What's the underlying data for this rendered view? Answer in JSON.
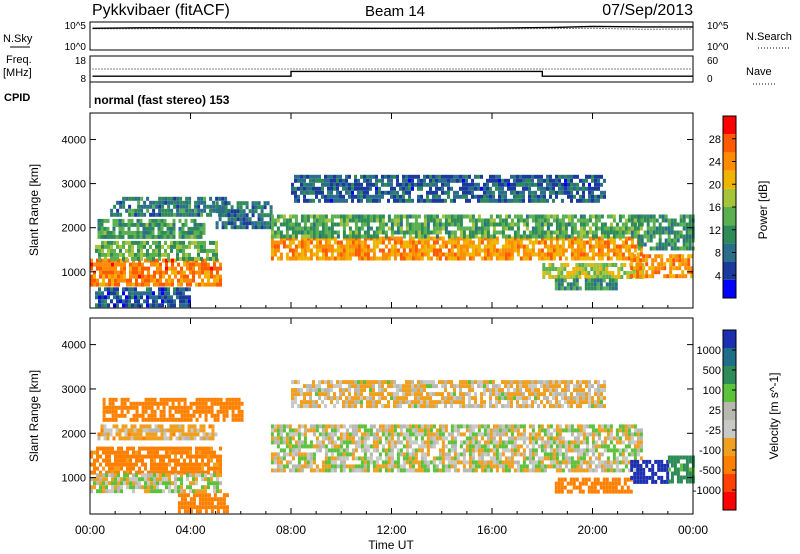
{
  "header": {
    "title": "Pykkvibaer (fitACF)",
    "beam": "Beam 14",
    "date": "07/Sep/2013"
  },
  "params": {
    "nsky_label": "N.Sky",
    "nsearch_label": "N.Search",
    "freq_label_1": "Freq.",
    "freq_label_2": "[MHz]",
    "nave_label": "Nave",
    "cpid_label": "CPID",
    "cpid_text": "normal (fast stereo) 153",
    "noise_ticks": [
      "10^5",
      "10^0"
    ],
    "freq_ticks": [
      "18",
      "8"
    ],
    "nave_ticks": [
      "60",
      "0"
    ]
  },
  "x_axis": {
    "label": "Time UT",
    "ticks": [
      "00:00",
      "04:00",
      "08:00",
      "12:00",
      "16:00",
      "20:00",
      "00:00"
    ],
    "range_hours": [
      0,
      24
    ]
  },
  "colors": {
    "power_scale": [
      "#0000ff",
      "#1a3a9c",
      "#2a6e8a",
      "#2e8b57",
      "#5ab04e",
      "#a6c43a",
      "#f0b400",
      "#ff8c00",
      "#ff5a00",
      "#ff0000"
    ],
    "velocity_scale": [
      "#1b2fb0",
      "#1e6e8a",
      "#2e8b57",
      "#5cc23c",
      "#b8b8b0",
      "#c8c8c4",
      "#f0a020",
      "#ff8000",
      "#ff4000",
      "#ff0000"
    ]
  },
  "chart_data": [
    {
      "type": "line",
      "title": "",
      "ylabel": "N.Sky",
      "y_ticks": [
        "10^5",
        "10^0"
      ],
      "series": [
        {
          "name": "N.Sky",
          "x": [
            0.1,
            2,
            4,
            8,
            12,
            16,
            18.5,
            20,
            22,
            24
          ],
          "y": [
            4.1,
            4.2,
            4.2,
            4.15,
            4.1,
            4.15,
            4.3,
            4.5,
            4.4,
            4.4
          ]
        },
        {
          "name": "N.Search",
          "x": [
            0.1,
            4,
            8,
            12,
            16,
            18.5,
            20,
            22,
            24
          ],
          "y": [
            4.0,
            4.05,
            4.0,
            4.0,
            4.0,
            4.05,
            4.1,
            3.9,
            3.95
          ]
        }
      ]
    },
    {
      "type": "line",
      "title": "",
      "ylabel": "Freq. [MHz]",
      "y_ticks": [
        "18",
        "8"
      ],
      "series": [
        {
          "name": "Freq.",
          "x": [
            0.1,
            8,
            8,
            18,
            18,
            24
          ],
          "y": [
            10,
            10,
            12,
            12,
            10,
            10
          ]
        },
        {
          "name": "Nave",
          "x": [
            0.1,
            24
          ],
          "y": [
            30,
            30
          ]
        }
      ]
    },
    {
      "type": "heatmap",
      "title": "",
      "xlabel": "Time UT",
      "ylabel": "Slant Range [km]",
      "y_ticks": [
        1000,
        2000,
        3000,
        4000
      ],
      "ylim": [
        180,
        4600
      ],
      "colorbar_label": "Power [dB]",
      "colorbar_ticks": [
        4,
        8,
        12,
        16,
        20,
        24,
        28
      ],
      "colorbar_range": [
        0,
        32
      ],
      "bands": [
        {
          "t0": 0.0,
          "t1": 5.2,
          "r0": 700,
          "r1": 1300,
          "level": 26
        },
        {
          "t0": 0.2,
          "t1": 5.0,
          "r0": 1300,
          "r1": 1700,
          "level": 14
        },
        {
          "t0": 0.3,
          "t1": 4.5,
          "r0": 1800,
          "r1": 2200,
          "level": 12
        },
        {
          "t0": 0.8,
          "t1": 5.5,
          "r0": 2300,
          "r1": 2700,
          "level": 9
        },
        {
          "t0": 0.2,
          "t1": 4.0,
          "r0": 250,
          "r1": 650,
          "level": 5
        },
        {
          "t0": 5.0,
          "t1": 7.2,
          "r0": 2000,
          "r1": 2600,
          "level": 8
        },
        {
          "t0": 7.2,
          "t1": 22.0,
          "r0": 1300,
          "r1": 1800,
          "level": 24
        },
        {
          "t0": 7.2,
          "t1": 22.0,
          "r0": 1800,
          "r1": 2300,
          "level": 13
        },
        {
          "t0": 8.0,
          "t1": 20.5,
          "r0": 2600,
          "r1": 3200,
          "level": 6
        },
        {
          "t0": 18.0,
          "t1": 22.0,
          "r0": 900,
          "r1": 1200,
          "level": 18
        },
        {
          "t0": 18.5,
          "t1": 21.0,
          "r0": 650,
          "r1": 850,
          "level": 10
        },
        {
          "t0": 21.5,
          "t1": 24.0,
          "r0": 900,
          "r1": 1400,
          "level": 25
        },
        {
          "t0": 21.8,
          "t1": 24.0,
          "r0": 1500,
          "r1": 2300,
          "level": 11
        }
      ]
    },
    {
      "type": "heatmap",
      "title": "",
      "xlabel": "Time UT",
      "ylabel": "Slant Range [km]",
      "y_ticks": [
        1000,
        2000,
        3000,
        4000
      ],
      "ylim": [
        180,
        4600
      ],
      "colorbar_label": "Velocity [m s^-1]",
      "colorbar_ticks": [
        1000,
        500,
        100,
        25,
        -25,
        -100,
        -500,
        -1000
      ],
      "bands": [
        {
          "t0": 0.0,
          "t1": 5.2,
          "r0": 1100,
          "r1": 1700,
          "velocity": -150
        },
        {
          "t0": 0.0,
          "t1": 5.2,
          "r0": 700,
          "r1": 1100,
          "velocity": 0
        },
        {
          "t0": 0.3,
          "t1": 5.0,
          "r0": 1900,
          "r1": 2200,
          "velocity": -50
        },
        {
          "t0": 0.5,
          "t1": 6.0,
          "r0": 2300,
          "r1": 2800,
          "velocity": -300
        },
        {
          "t0": 3.5,
          "t1": 5.5,
          "r0": 250,
          "r1": 650,
          "velocity": -200
        },
        {
          "t0": 7.2,
          "t1": 22.0,
          "r0": 1200,
          "r1": 2200,
          "velocity": 0
        },
        {
          "t0": 8.0,
          "t1": 20.5,
          "r0": 2600,
          "r1": 3200,
          "velocity": -30
        },
        {
          "t0": 18.5,
          "t1": 21.5,
          "r0": 700,
          "r1": 1000,
          "velocity": -300
        },
        {
          "t0": 21.5,
          "t1": 23.0,
          "r0": 900,
          "r1": 1400,
          "velocity": 600
        },
        {
          "t0": 23.0,
          "t1": 24.0,
          "r0": 900,
          "r1": 1500,
          "velocity": 150
        }
      ]
    }
  ]
}
